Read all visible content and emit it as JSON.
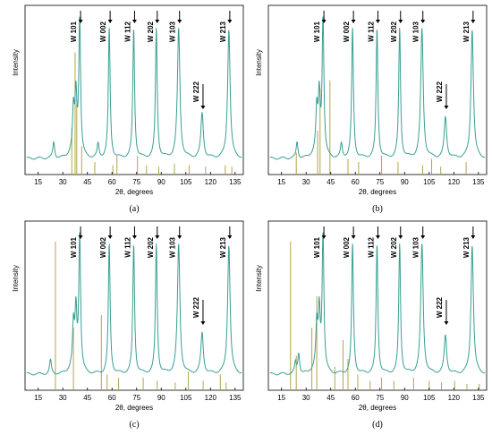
{
  "chart_data": [
    {
      "type": "line",
      "panel_label": "(a)",
      "xlabel": "2θ, degrees",
      "ylabel": "Intensity",
      "xlim": [
        7,
        140
      ],
      "xticks": [
        15,
        30,
        45,
        60,
        75,
        90,
        105,
        120,
        135
      ],
      "xtick_labels": [
        "15",
        "30",
        "45",
        "60",
        "75",
        "90",
        "105",
        "120",
        "135"
      ],
      "peak_labels": [
        {
          "label": "W 101",
          "x": 40.3
        },
        {
          "label": "W 002",
          "x": 58.3
        },
        {
          "label": "W 112",
          "x": 73.2
        },
        {
          "label": "W 202",
          "x": 87.0
        },
        {
          "label": "W 103",
          "x": 100.6
        },
        {
          "label": "W 222",
          "x": 114.9
        },
        {
          "label": "W 213",
          "x": 131.2
        }
      ],
      "pattern": [
        {
          "x": 24.5,
          "y": 0.12
        },
        {
          "x": 36.5,
          "y": 0.3
        },
        {
          "x": 38.0,
          "y": 0.4
        },
        {
          "x": 40.3,
          "y": 1.0
        },
        {
          "x": 51.5,
          "y": 0.1
        },
        {
          "x": 58.3,
          "y": 0.95
        },
        {
          "x": 73.2,
          "y": 0.95
        },
        {
          "x": 87.0,
          "y": 0.95
        },
        {
          "x": 100.6,
          "y": 0.95
        },
        {
          "x": 114.9,
          "y": 0.33
        },
        {
          "x": 131.2,
          "y": 0.95
        }
      ],
      "reference_lines": [
        {
          "x": 35.5,
          "h": 0.3
        },
        {
          "x": 37.5,
          "h": 0.78
        },
        {
          "x": 38.5,
          "h": 0.45
        },
        {
          "x": 41.5,
          "h": 0.18
        },
        {
          "x": 49.5,
          "h": 0.08
        },
        {
          "x": 60.5,
          "h": 0.06
        },
        {
          "x": 63.0,
          "h": 0.12
        },
        {
          "x": 75.5,
          "h": 0.12
        },
        {
          "x": 81.0,
          "h": 0.06
        },
        {
          "x": 88.5,
          "h": 0.05
        },
        {
          "x": 98.0,
          "h": 0.07
        },
        {
          "x": 107.0,
          "h": 0.06
        },
        {
          "x": 117.0,
          "h": 0.05
        },
        {
          "x": 129.0,
          "h": 0.06
        },
        {
          "x": 133.0,
          "h": 0.05
        }
      ]
    },
    {
      "type": "line",
      "panel_label": "(b)",
      "xlabel": "2θ, degrees",
      "ylabel": "Intensity",
      "xlim": [
        7,
        140
      ],
      "xticks": [
        15,
        30,
        45,
        60,
        75,
        90,
        105,
        120,
        135
      ],
      "xtick_labels": [
        "15",
        "30",
        "45",
        "60",
        "75",
        "90",
        "105",
        "120",
        "135"
      ],
      "peak_labels": [
        {
          "label": "W 101",
          "x": 40.3
        },
        {
          "label": "W 002",
          "x": 58.3
        },
        {
          "label": "W 112",
          "x": 73.2
        },
        {
          "label": "W 202",
          "x": 87.0
        },
        {
          "label": "W 103",
          "x": 100.6
        },
        {
          "label": "W 222",
          "x": 114.9
        },
        {
          "label": "W 213",
          "x": 131.2
        }
      ],
      "pattern": [
        {
          "x": 24.5,
          "y": 0.12
        },
        {
          "x": 36.5,
          "y": 0.3
        },
        {
          "x": 38.0,
          "y": 0.4
        },
        {
          "x": 40.3,
          "y": 1.0
        },
        {
          "x": 51.5,
          "y": 0.1
        },
        {
          "x": 58.3,
          "y": 0.95
        },
        {
          "x": 73.2,
          "y": 0.95
        },
        {
          "x": 87.0,
          "y": 0.95
        },
        {
          "x": 100.6,
          "y": 0.95
        },
        {
          "x": 114.9,
          "y": 0.3
        },
        {
          "x": 131.2,
          "y": 0.95
        }
      ],
      "reference_lines": [
        {
          "x": 24.0,
          "h": 0.14
        },
        {
          "x": 37.0,
          "h": 0.28
        },
        {
          "x": 38.5,
          "h": 0.55
        },
        {
          "x": 44.5,
          "h": 0.6
        },
        {
          "x": 55.5,
          "h": 0.1
        },
        {
          "x": 62.0,
          "h": 0.08
        },
        {
          "x": 76.0,
          "h": 0.12
        },
        {
          "x": 86.0,
          "h": 0.08
        },
        {
          "x": 101.0,
          "h": 0.06
        },
        {
          "x": 106.5,
          "h": 0.1
        },
        {
          "x": 112.0,
          "h": 0.05
        },
        {
          "x": 127.5,
          "h": 0.08
        }
      ]
    },
    {
      "type": "line",
      "panel_label": "(c)",
      "xlabel": "2θ, degrees",
      "ylabel": "Intensity",
      "xlim": [
        7,
        140
      ],
      "xticks": [
        15,
        30,
        45,
        60,
        75,
        90,
        105,
        120,
        135
      ],
      "xtick_labels": [
        "15",
        "30",
        "45",
        "60",
        "75",
        "90",
        "105",
        "120",
        "135"
      ],
      "peak_labels": [
        {
          "label": "W 101",
          "x": 40.3
        },
        {
          "label": "W 002",
          "x": 58.3
        },
        {
          "label": "W 112",
          "x": 73.2
        },
        {
          "label": "W 202",
          "x": 87.0
        },
        {
          "label": "W 103",
          "x": 100.6
        },
        {
          "label": "W 222",
          "x": 114.9
        },
        {
          "label": "W 213",
          "x": 131.2
        }
      ],
      "pattern": [
        {
          "x": 22.5,
          "y": 0.1
        },
        {
          "x": 36.5,
          "y": 0.3
        },
        {
          "x": 38.0,
          "y": 0.4
        },
        {
          "x": 40.3,
          "y": 1.0
        },
        {
          "x": 58.3,
          "y": 0.95
        },
        {
          "x": 73.2,
          "y": 0.95
        },
        {
          "x": 87.0,
          "y": 0.95
        },
        {
          "x": 100.6,
          "y": 0.95
        },
        {
          "x": 114.9,
          "y": 0.3
        },
        {
          "x": 131.2,
          "y": 0.95
        }
      ],
      "reference_lines": [
        {
          "x": 25.5,
          "h": 0.95
        },
        {
          "x": 36.5,
          "h": 0.4
        },
        {
          "x": 53.5,
          "h": 0.48
        },
        {
          "x": 57.0,
          "h": 0.1
        },
        {
          "x": 64.0,
          "h": 0.08
        },
        {
          "x": 79.0,
          "h": 0.08
        },
        {
          "x": 87.5,
          "h": 0.06
        },
        {
          "x": 98.5,
          "h": 0.05
        },
        {
          "x": 106.5,
          "h": 0.12
        },
        {
          "x": 115.5,
          "h": 0.06
        },
        {
          "x": 126.0,
          "h": 0.1
        },
        {
          "x": 129.5,
          "h": 0.05
        }
      ]
    },
    {
      "type": "line",
      "panel_label": "(d)",
      "xlabel": "2θ, degrees",
      "ylabel": "Intensity",
      "xlim": [
        7,
        140
      ],
      "xticks": [
        15,
        30,
        45,
        60,
        75,
        90,
        105,
        120,
        135
      ],
      "xtick_labels": [
        "15",
        "30",
        "45",
        "60",
        "75",
        "90",
        "105",
        "120",
        "135"
      ],
      "peak_labels": [
        {
          "label": "W 101",
          "x": 40.3
        },
        {
          "label": "W 002",
          "x": 58.3
        },
        {
          "label": "W 112",
          "x": 73.2
        },
        {
          "label": "W 202",
          "x": 87.0
        },
        {
          "label": "W 103",
          "x": 100.6
        },
        {
          "label": "W 222",
          "x": 114.9
        },
        {
          "label": "W 213",
          "x": 131.2
        }
      ],
      "pattern": [
        {
          "x": 23.5,
          "y": 0.08
        },
        {
          "x": 25.5,
          "y": 0.15
        },
        {
          "x": 36.5,
          "y": 0.3
        },
        {
          "x": 38.0,
          "y": 0.4
        },
        {
          "x": 40.3,
          "y": 1.0
        },
        {
          "x": 58.3,
          "y": 0.95
        },
        {
          "x": 73.2,
          "y": 0.95
        },
        {
          "x": 87.0,
          "y": 0.95
        },
        {
          "x": 100.6,
          "y": 0.95
        },
        {
          "x": 114.9,
          "y": 0.28
        },
        {
          "x": 131.2,
          "y": 0.95
        }
      ],
      "reference_lines": [
        {
          "x": 20.5,
          "h": 0.95
        },
        {
          "x": 24.0,
          "h": 0.22
        },
        {
          "x": 33.5,
          "h": 0.4
        },
        {
          "x": 36.5,
          "h": 0.6
        },
        {
          "x": 47.5,
          "h": 0.15
        },
        {
          "x": 52.5,
          "h": 0.32
        },
        {
          "x": 55.5,
          "h": 0.2
        },
        {
          "x": 61.5,
          "h": 0.1
        },
        {
          "x": 69.0,
          "h": 0.06
        },
        {
          "x": 76.0,
          "h": 0.08
        },
        {
          "x": 83.5,
          "h": 0.06
        },
        {
          "x": 95.5,
          "h": 0.08
        },
        {
          "x": 105.0,
          "h": 0.06
        },
        {
          "x": 112.5,
          "h": 0.05
        },
        {
          "x": 120.5,
          "h": 0.06
        },
        {
          "x": 128.0,
          "h": 0.04
        },
        {
          "x": 135.5,
          "h": 0.04
        }
      ]
    }
  ],
  "colors": {
    "pattern_line": "#3a9f93",
    "reference_lines": "#b3a44a",
    "axis": "#000000"
  }
}
